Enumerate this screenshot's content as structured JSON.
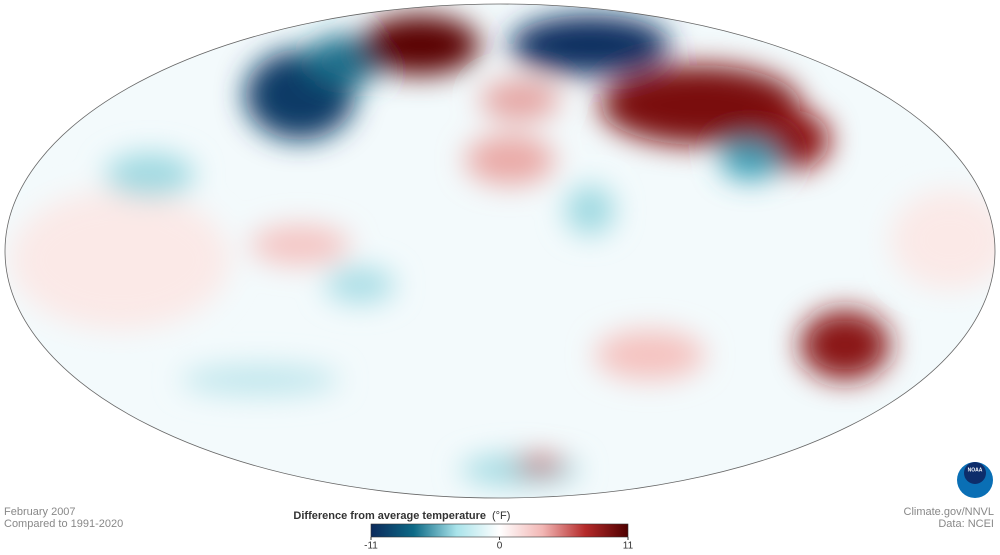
{
  "map": {
    "date": "February 2007",
    "baseline": "Compared to 1991-2020",
    "credit": "Climate.gov/NNVL",
    "source": "Data: NCEI",
    "logo": "NOAA"
  },
  "colorbar": {
    "title": "Difference from average temperature",
    "unit": "(°F)",
    "ticks": [
      -11,
      0,
      11
    ],
    "colors": [
      "#0b2a5c",
      "#0d6a86",
      "#a9e3ea",
      "#ffffff",
      "#f2b7b5",
      "#b52a2a",
      "#4f0000"
    ]
  }
}
